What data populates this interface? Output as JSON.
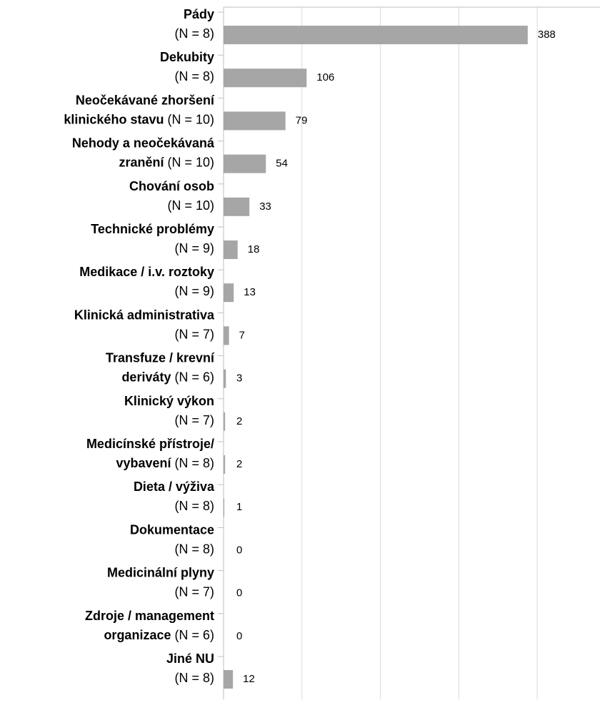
{
  "chart_data": {
    "type": "hbar",
    "color": "#a6a6a6",
    "categories": [
      {
        "name": [
          "Pády"
        ],
        "n": "(N = 8)"
      },
      {
        "name": [
          "Dekubity"
        ],
        "n": "(N = 8)"
      },
      {
        "name": [
          "Neočekávané zhoršení",
          "klinického stavu"
        ],
        "n": "(N = 10)"
      },
      {
        "name": [
          "Nehody a neočekávaná",
          "zranění"
        ],
        "n": "(N = 10)"
      },
      {
        "name": [
          "Chování osob"
        ],
        "n": "(N = 10)"
      },
      {
        "name": [
          "Technické problémy"
        ],
        "n": "(N = 9)"
      },
      {
        "name": [
          "Medikace / i.v. roztoky"
        ],
        "n": "(N = 9)"
      },
      {
        "name": [
          "Klinická administrativa"
        ],
        "n": "(N = 7)"
      },
      {
        "name": [
          "Transfuze / krevní",
          "deriváty"
        ],
        "n": "(N = 6)"
      },
      {
        "name": [
          "Klinický výkon"
        ],
        "n": "(N = 7)"
      },
      {
        "name": [
          "Medicínské přístroje/",
          "vybavení"
        ],
        "n": "(N = 8)"
      },
      {
        "name": [
          "Dieta / výživa"
        ],
        "n": "(N = 8)"
      },
      {
        "name": [
          "Dokumentace"
        ],
        "n": "(N = 8)"
      },
      {
        "name": [
          "Medicinální plyny"
        ],
        "n": "(N = 7)"
      },
      {
        "name": [
          "Zdroje / management",
          "organizace"
        ],
        "n": "(N = 6)"
      },
      {
        "name": [
          "Jiné NU"
        ],
        "n": "(N = 8)"
      }
    ],
    "values": [
      388,
      106,
      79,
      54,
      33,
      18,
      13,
      7,
      3,
      2,
      2,
      1,
      0,
      0,
      0,
      12
    ],
    "xlim": [
      0,
      480
    ],
    "xticks": [
      0,
      100,
      200,
      300,
      400
    ],
    "grid": true
  }
}
